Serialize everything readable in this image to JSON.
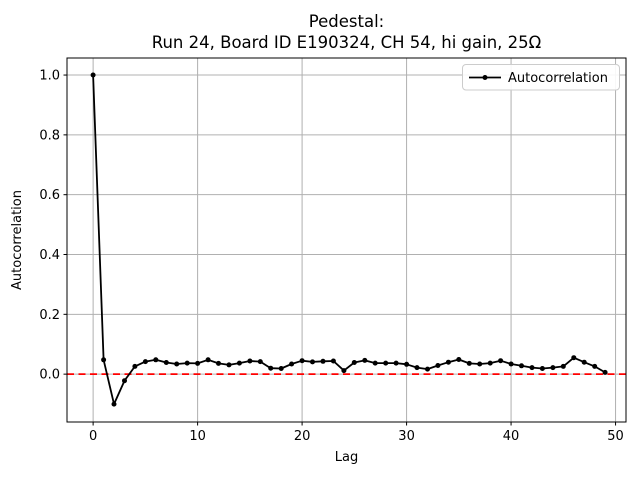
{
  "title": {
    "line1": "Pedestal:",
    "line2": "Run 24, Board ID E190324, CH 54, hi gain, 25Ω"
  },
  "legend": {
    "label": "Autocorrelation",
    "position": "upper right"
  },
  "colors": {
    "background": "#ffffff",
    "series_line": "#000000",
    "zero_line": "#ff0000",
    "grid": "#b0b0b0",
    "spine": "#000000",
    "legend_border": "#cccccc",
    "text": "#000000"
  },
  "chart_data": {
    "type": "line",
    "title": "Pedestal:\nRun 24, Board ID E190324, CH 54, hi gain, 25Ω",
    "xlabel": "Lag",
    "ylabel": "Autocorrelation",
    "grid": true,
    "legend_position": "upper right",
    "xlim": [
      -2.5,
      51.0
    ],
    "ylim": [
      -0.16,
      1.057
    ],
    "x_ticks": [
      0,
      10,
      20,
      30,
      40,
      50
    ],
    "x_tick_labels": [
      "0",
      "10",
      "20",
      "30",
      "40",
      "50"
    ],
    "y_ticks": [
      0.0,
      0.2,
      0.4,
      0.6,
      0.8,
      1.0
    ],
    "y_tick_labels": [
      "0.0",
      "0.2",
      "0.4",
      "0.6",
      "0.8",
      "1.0"
    ],
    "annotations": [
      {
        "type": "hline",
        "y": 0.0,
        "style": "dashed",
        "color": "#ff0000"
      }
    ],
    "series": [
      {
        "name": "Autocorrelation",
        "marker": "dot",
        "color": "#000000",
        "x": [
          0,
          1,
          2,
          3,
          4,
          5,
          6,
          7,
          8,
          9,
          10,
          11,
          12,
          13,
          14,
          15,
          16,
          17,
          18,
          19,
          20,
          21,
          22,
          23,
          24,
          25,
          26,
          27,
          28,
          29,
          30,
          31,
          32,
          33,
          34,
          35,
          36,
          37,
          38,
          39,
          40,
          41,
          42,
          43,
          44,
          45,
          46,
          47,
          48,
          49
        ],
        "y": [
          1.0,
          0.048,
          -0.1,
          -0.022,
          0.026,
          0.042,
          0.048,
          0.039,
          0.034,
          0.037,
          0.036,
          0.048,
          0.036,
          0.031,
          0.037,
          0.044,
          0.042,
          0.02,
          0.019,
          0.034,
          0.045,
          0.041,
          0.043,
          0.044,
          0.012,
          0.039,
          0.046,
          0.037,
          0.037,
          0.037,
          0.033,
          0.022,
          0.017,
          0.029,
          0.04,
          0.049,
          0.036,
          0.034,
          0.037,
          0.045,
          0.034,
          0.028,
          0.022,
          0.019,
          0.022,
          0.026,
          0.055,
          0.04,
          0.026,
          0.006
        ]
      }
    ]
  }
}
